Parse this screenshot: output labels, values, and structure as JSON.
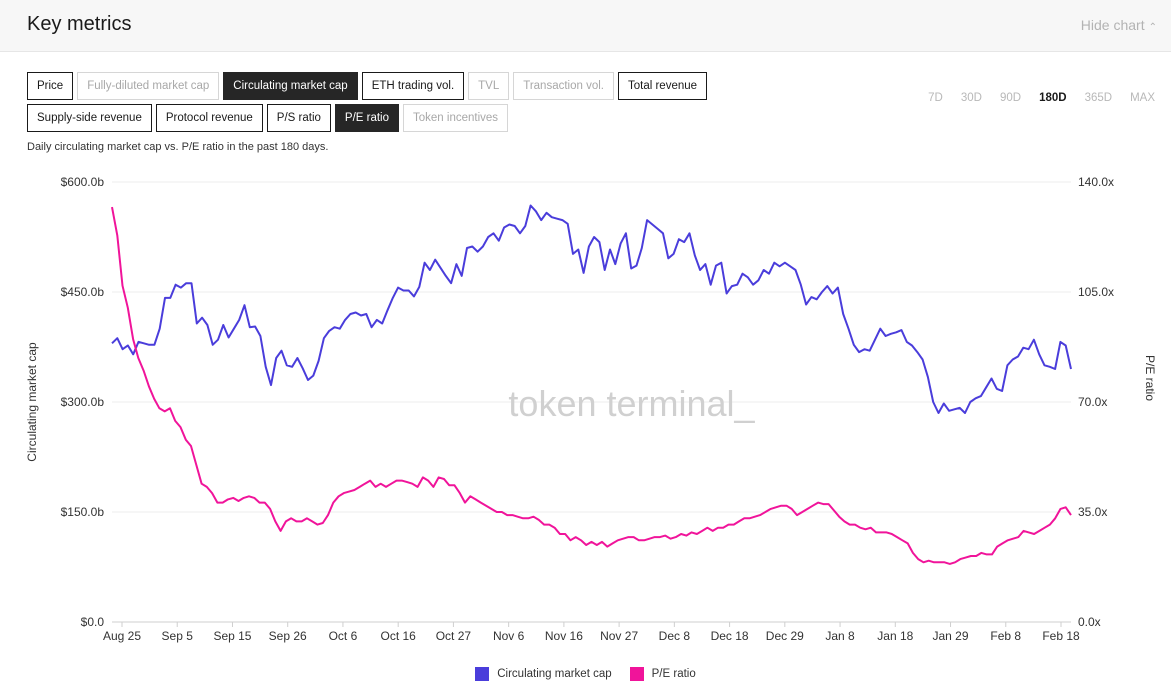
{
  "header": {
    "title": "Key metrics",
    "hide_label": "Hide chart"
  },
  "metric_buttons": {
    "row1": [
      {
        "label": "Price",
        "state": "normal"
      },
      {
        "label": "Fully-diluted market cap",
        "state": "disabled"
      },
      {
        "label": "Circulating market cap",
        "state": "active"
      },
      {
        "label": "ETH trading vol.",
        "state": "normal"
      },
      {
        "label": "TVL",
        "state": "disabled"
      },
      {
        "label": "Transaction vol.",
        "state": "disabled"
      },
      {
        "label": "Total revenue",
        "state": "normal"
      }
    ],
    "row2": [
      {
        "label": "Supply-side revenue",
        "state": "normal"
      },
      {
        "label": "Protocol revenue",
        "state": "normal"
      },
      {
        "label": "P/S ratio",
        "state": "normal"
      },
      {
        "label": "P/E ratio",
        "state": "active"
      },
      {
        "label": "Token incentives",
        "state": "disabled"
      }
    ]
  },
  "range_tabs": [
    {
      "label": "7D",
      "active": false
    },
    {
      "label": "30D",
      "active": false
    },
    {
      "label": "90D",
      "active": false
    },
    {
      "label": "180D",
      "active": true
    },
    {
      "label": "365D",
      "active": false
    },
    {
      "label": "MAX",
      "active": false
    }
  ],
  "subtitle": "Daily circulating market cap vs. P/E ratio in the past 180 days.",
  "watermark": "token terminal_",
  "colors": {
    "market_cap": "#4a3ddb",
    "pe_ratio": "#f0149a",
    "grid": "#ececec"
  },
  "chart_data": {
    "type": "line",
    "x_ticks": [
      "Aug 25",
      "Sep 5",
      "Sep 15",
      "Sep 26",
      "Oct 6",
      "Oct 16",
      "Oct 27",
      "Nov 6",
      "Nov 16",
      "Nov 27",
      "Dec 8",
      "Dec 18",
      "Dec 29",
      "Jan 8",
      "Jan 18",
      "Jan 29",
      "Feb 8",
      "Feb 18"
    ],
    "y_left": {
      "label": "Circulating market cap",
      "ticks": [
        "$0.0",
        "$150.0b",
        "$300.0b",
        "$450.0b",
        "$600.0b"
      ],
      "ylim": [
        0,
        600
      ]
    },
    "y_right": {
      "label": "P/E ratio",
      "ticks": [
        "0.0x",
        "35.0x",
        "70.0x",
        "105.0x",
        "140.0x"
      ],
      "ylim": [
        0,
        140
      ]
    },
    "series": [
      {
        "name": "Circulating market cap",
        "axis": "left",
        "values": [
          380,
          387,
          372,
          377,
          365,
          382,
          380,
          378,
          378,
          400,
          442,
          442,
          460,
          456,
          462,
          462,
          407,
          415,
          405,
          378,
          385,
          405,
          388,
          400,
          412,
          432,
          402,
          403,
          390,
          348,
          323,
          360,
          370,
          350,
          348,
          360,
          346,
          330,
          336,
          356,
          387,
          397,
          402,
          400,
          412,
          420,
          422,
          418,
          420,
          402,
          412,
          407,
          425,
          442,
          456,
          452,
          452,
          444,
          457,
          490,
          480,
          494,
          483,
          472,
          462,
          488,
          472,
          510,
          512,
          505,
          512,
          525,
          530,
          520,
          538,
          542,
          540,
          530,
          540,
          568,
          560,
          548,
          558,
          552,
          550,
          548,
          543,
          502,
          508,
          476,
          512,
          525,
          518,
          480,
          508,
          488,
          516,
          530,
          482,
          486,
          510,
          548,
          542,
          536,
          530,
          496,
          502,
          522,
          518,
          530,
          500,
          480,
          488,
          460,
          486,
          490,
          448,
          458,
          460,
          475,
          470,
          460,
          466,
          480,
          475,
          490,
          485,
          490,
          485,
          480,
          460,
          433,
          443,
          440,
          450,
          458,
          448,
          456,
          420,
          400,
          378,
          368,
          372,
          370,
          385,
          400,
          390,
          393,
          395,
          398,
          382,
          377,
          368,
          358,
          334,
          300,
          285,
          298,
          288,
          290,
          292,
          285,
          300,
          305,
          308,
          320,
          332,
          318,
          315,
          350,
          358,
          362,
          374,
          372,
          385,
          365,
          350,
          348,
          345,
          382,
          377,
          345
        ]
      },
      {
        "name": "P/E ratio",
        "axis": "right",
        "values": [
          132,
          123,
          107,
          100,
          90,
          84,
          80,
          75,
          71,
          68,
          67,
          68,
          64,
          62,
          58,
          56,
          50,
          44,
          43,
          41,
          38,
          38,
          39,
          39.5,
          38.5,
          39.5,
          40,
          39.5,
          38,
          38,
          36,
          32,
          29,
          32,
          33,
          32,
          32,
          33,
          32,
          31,
          31.5,
          34,
          38,
          40,
          41,
          41.5,
          42,
          43,
          44,
          45,
          43,
          44,
          43,
          44,
          45,
          45,
          44.5,
          44,
          43,
          46,
          45,
          43,
          46,
          45.5,
          43.5,
          43.5,
          41,
          38,
          40,
          39,
          38,
          37,
          36,
          35,
          35,
          34,
          34,
          33.5,
          33,
          33,
          33.5,
          32.5,
          31,
          31,
          30,
          28,
          28,
          26,
          27,
          26,
          24.5,
          25.5,
          24.5,
          25.5,
          24,
          25,
          26,
          26.5,
          27,
          27,
          26,
          26,
          26.5,
          27,
          27,
          27.5,
          26.5,
          27,
          28,
          27.5,
          28.5,
          28,
          29,
          30,
          29,
          30,
          30,
          31,
          31,
          32,
          33,
          33,
          33.5,
          34,
          35,
          36,
          36.5,
          37,
          37,
          36,
          34,
          35,
          36,
          37,
          38,
          37.5,
          37.5,
          35.5,
          33.5,
          32,
          31,
          31,
          30,
          29.5,
          30,
          28.5,
          28.5,
          28.5,
          28,
          27,
          26,
          25,
          22,
          20,
          19,
          19.5,
          19,
          19,
          19,
          18.5,
          19,
          20,
          20.5,
          21,
          21,
          22,
          21.5,
          21.5,
          24,
          25,
          26,
          26.5,
          27,
          29,
          28.5,
          28,
          29,
          30,
          31,
          33,
          36,
          36.5,
          34
        ]
      }
    ],
    "grid": true,
    "legend": "bottom-center"
  }
}
